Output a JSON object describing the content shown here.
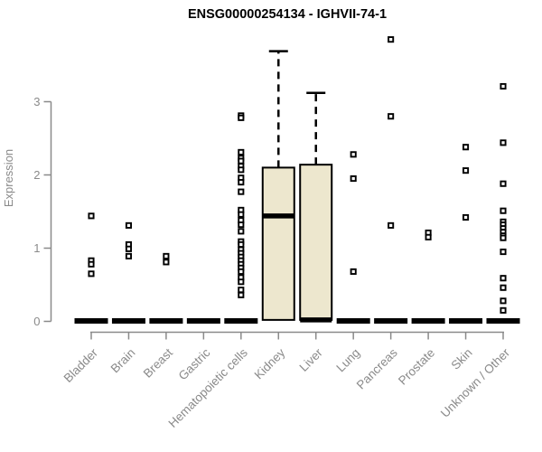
{
  "chart_data": {
    "type": "boxplot",
    "title": "ENSG00000254134 - IGHVII-74-1",
    "ylabel": "Expression",
    "ylim": [
      0,
      4.0
    ],
    "yticks": [
      0,
      1,
      2,
      3
    ],
    "grid": false,
    "legend": "none",
    "categories": [
      "Bladder",
      "Brain",
      "Breast",
      "Gastric",
      "Hematopoietic cells",
      "Kidney",
      "Liver",
      "Lung",
      "Pancreas",
      "Prostate",
      "Skin",
      "Unknown / Other"
    ],
    "series": [
      {
        "category": "Bladder",
        "box": {
          "collapsed": true,
          "q1": 0,
          "median": 0,
          "q3": 0,
          "whisker_high": 0
        },
        "outliers": [
          1.44,
          0.83,
          0.78,
          0.65
        ]
      },
      {
        "category": "Brain",
        "box": {
          "collapsed": true,
          "q1": 0,
          "median": 0,
          "q3": 0,
          "whisker_high": 0
        },
        "outliers": [
          1.31,
          1.05,
          0.99,
          0.89
        ]
      },
      {
        "category": "Breast",
        "box": {
          "collapsed": true,
          "q1": 0,
          "median": 0,
          "q3": 0,
          "whisker_high": 0
        },
        "outliers": [
          0.89,
          0.81
        ]
      },
      {
        "category": "Gastric",
        "box": {
          "collapsed": true,
          "q1": 0,
          "median": 0,
          "q3": 0,
          "whisker_high": 0
        },
        "outliers": []
      },
      {
        "category": "Hematopoietic cells",
        "box": {
          "collapsed": true,
          "q1": 0,
          "median": 0,
          "q3": 0,
          "whisker_high": 0
        },
        "outliers": [
          2.81,
          2.78,
          2.31,
          2.23,
          2.19,
          2.12,
          2.07,
          1.96,
          1.9,
          1.77,
          1.52,
          1.46,
          1.38,
          1.32,
          1.23,
          1.09,
          1.05,
          0.98,
          0.93,
          0.88,
          0.83,
          0.78,
          0.73,
          0.68,
          0.6,
          0.54,
          0.43,
          0.36
        ]
      },
      {
        "category": "Kidney",
        "box": {
          "collapsed": false,
          "q1": 0.02,
          "median": 1.44,
          "q3": 2.1,
          "whisker_high": 3.69
        },
        "outliers": []
      },
      {
        "category": "Liver",
        "box": {
          "collapsed": false,
          "q1": 0.02,
          "median": 0.02,
          "q3": 2.14,
          "whisker_high": 3.12
        },
        "outliers": []
      },
      {
        "category": "Lung",
        "box": {
          "collapsed": true,
          "q1": 0,
          "median": 0,
          "q3": 0,
          "whisker_high": 0
        },
        "outliers": [
          2.28,
          1.95,
          0.68
        ]
      },
      {
        "category": "Pancreas",
        "box": {
          "collapsed": true,
          "q1": 0,
          "median": 0,
          "q3": 0,
          "whisker_high": 0
        },
        "outliers": [
          3.85,
          2.8,
          1.31
        ]
      },
      {
        "category": "Prostate",
        "box": {
          "collapsed": true,
          "q1": 0,
          "median": 0,
          "q3": 0,
          "whisker_high": 0
        },
        "outliers": [
          1.21,
          1.15
        ]
      },
      {
        "category": "Skin",
        "box": {
          "collapsed": true,
          "q1": 0,
          "median": 0,
          "q3": 0,
          "whisker_high": 0
        },
        "outliers": [
          2.38,
          2.06,
          1.42
        ]
      },
      {
        "category": "Unknown / Other",
        "box": {
          "collapsed": true,
          "q1": 0,
          "median": 0,
          "q3": 0,
          "whisker_high": 0
        },
        "outliers": [
          3.21,
          2.44,
          1.88,
          1.51,
          1.36,
          1.32,
          1.27,
          1.22,
          1.17,
          1.14,
          0.95,
          0.59,
          0.46,
          0.28,
          0.15
        ]
      }
    ],
    "colors": {
      "box_fill": "#EDE7CE",
      "box_stroke": "#000000",
      "median": "#000000",
      "whisker": "#000000",
      "axis": "#8A8A8A",
      "tick_label": "#8A8A8A",
      "title": "#000000",
      "point_fill": "#FFFFFF",
      "point_stroke": "#000000",
      "background": "#FFFFFF"
    }
  }
}
